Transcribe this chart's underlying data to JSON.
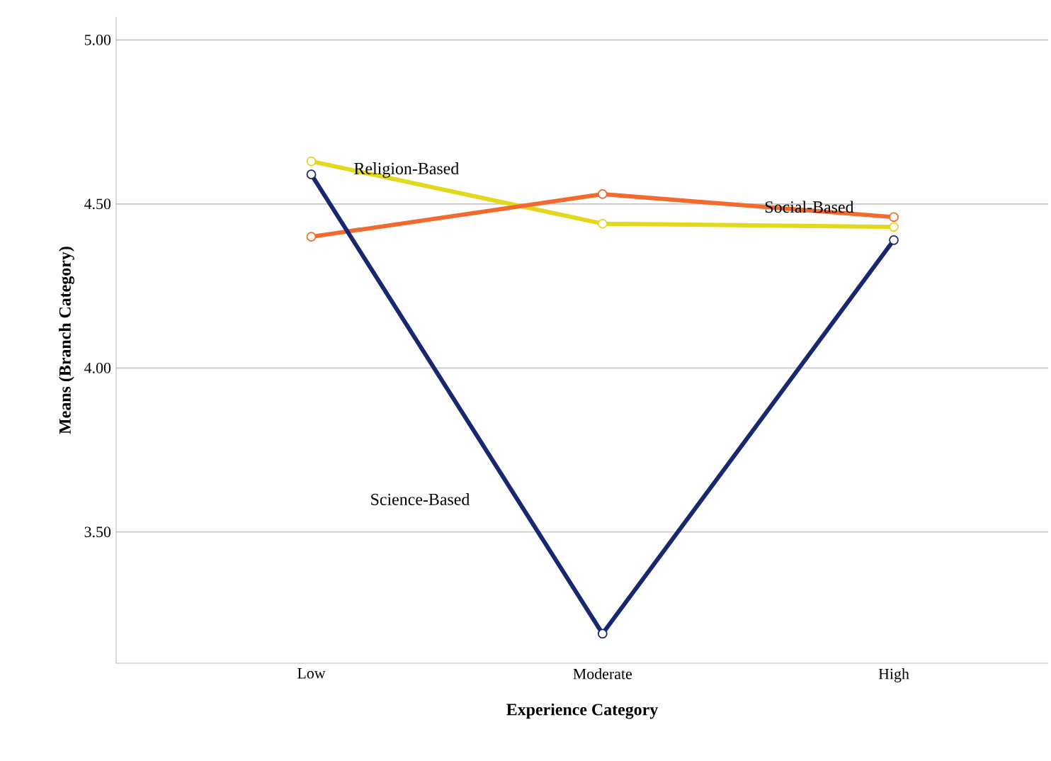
{
  "chart_data": {
    "type": "line",
    "xlabel": "Experience Category",
    "ylabel": "Means (Branch Category)",
    "categories": [
      "Low",
      "Moderate",
      "High"
    ],
    "series": [
      {
        "name": "Religion-Based",
        "color": "#e3d91c",
        "values": [
          4.63,
          4.44,
          4.43
        ]
      },
      {
        "name": "Social-Based",
        "color": "#f26b2e",
        "values": [
          4.4,
          4.53,
          4.46
        ]
      },
      {
        "name": "Science-Based",
        "color": "#18286e",
        "values": [
          4.59,
          3.19,
          4.39
        ]
      }
    ],
    "ylim": [
      3.1,
      5.07
    ],
    "yticks": [
      {
        "value": 3.5,
        "label": "3.50"
      },
      {
        "value": 4,
        "label": "4.00"
      },
      {
        "value": 4.5,
        "label": "4.50"
      },
      {
        "value": 5,
        "label": "5.00"
      }
    ],
    "grid": "y",
    "marker": "circle",
    "line_style": "solid"
  }
}
